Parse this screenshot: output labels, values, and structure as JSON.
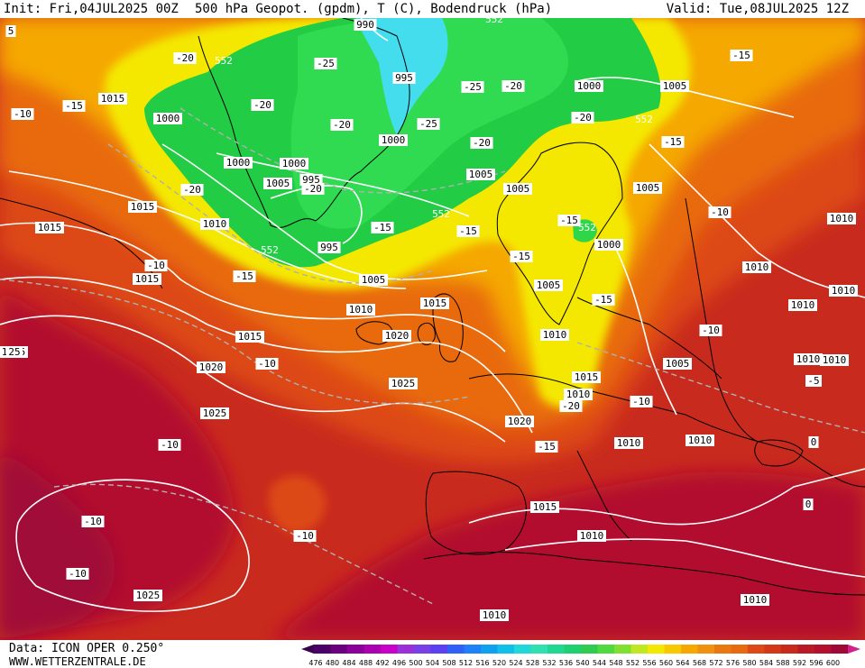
{
  "header": {
    "init": "Init: Fri,04JUL2025 00Z",
    "title": "500 hPa Geopot. (gpdm), T (C), Bodendruck (hPa)",
    "valid": "Valid: Tue,08JUL2025 12Z"
  },
  "footer": {
    "model": "Data: ICON OPER 0.250°",
    "site": "WWW.WETTERZENTRALE.DE"
  },
  "colors": {
    "green": "#22cc44",
    "light_green": "#33dd55",
    "cyan": "#44ddee",
    "yellow": "#f4e800",
    "orange": "#f5a800",
    "dark_orange": "#e86a10",
    "red_orange": "#dd4a18",
    "red": "#c92a1e",
    "dark_red": "#b2102e",
    "magenta_red": "#a00838"
  },
  "legend": {
    "values": [
      "476",
      "480",
      "484",
      "488",
      "492",
      "496",
      "500",
      "504",
      "508",
      "512",
      "516",
      "520",
      "524",
      "528",
      "532",
      "536",
      "540",
      "544",
      "548",
      "552",
      "556",
      "560",
      "564",
      "568",
      "572",
      "576",
      "580",
      "584",
      "588",
      "592",
      "596",
      "600"
    ],
    "colors": [
      "#4b0068",
      "#6a0080",
      "#8a0098",
      "#aa00b0",
      "#c800c8",
      "#9a30d8",
      "#7a40e8",
      "#5a40f0",
      "#3060f8",
      "#2080f8",
      "#10a0f0",
      "#10c0e8",
      "#20d8d8",
      "#30e0b0",
      "#20d890",
      "#20d070",
      "#30cc50",
      "#50d840",
      "#80e030",
      "#c0e820",
      "#f4e800",
      "#f8c800",
      "#f5a800",
      "#f09010",
      "#ea7810",
      "#e86a10",
      "#dd4a18",
      "#d23818",
      "#c92a1e",
      "#b81a26",
      "#b2102e",
      "#a00838"
    ]
  },
  "pressure_labels": [
    {
      "text": "990"
    },
    {
      "text": "995"
    },
    {
      "text": "995"
    },
    {
      "text": "995"
    },
    {
      "text": "1000"
    },
    {
      "text": "1000"
    },
    {
      "text": "1000"
    },
    {
      "text": "1000"
    },
    {
      "text": "1000"
    },
    {
      "text": "1000"
    },
    {
      "text": "1005"
    },
    {
      "text": "1005"
    },
    {
      "text": "1005"
    },
    {
      "text": "1005"
    },
    {
      "text": "1005"
    },
    {
      "text": "1005"
    },
    {
      "text": "1005"
    },
    {
      "text": "1005"
    },
    {
      "text": "1010"
    },
    {
      "text": "1010"
    },
    {
      "text": "1010"
    },
    {
      "text": "1010"
    },
    {
      "text": "1010"
    },
    {
      "text": "1010"
    },
    {
      "text": "1010"
    },
    {
      "text": "1010"
    },
    {
      "text": "1010"
    },
    {
      "text": "1010"
    },
    {
      "text": "1010"
    },
    {
      "text": "1010"
    },
    {
      "text": "1010"
    },
    {
      "text": "1010"
    },
    {
      "text": "1010"
    },
    {
      "text": "1015"
    },
    {
      "text": "1015"
    },
    {
      "text": "1015"
    },
    {
      "text": "1015"
    },
    {
      "text": "1015"
    },
    {
      "text": "1015"
    },
    {
      "text": "1015"
    },
    {
      "text": "1015"
    },
    {
      "text": "1020"
    },
    {
      "text": "1020"
    },
    {
      "text": "1020"
    },
    {
      "text": "1025"
    },
    {
      "text": "1025"
    },
    {
      "text": "1025"
    },
    {
      "text": "1025"
    }
  ],
  "temperature_labels": [
    {
      "text": "-25"
    },
    {
      "text": "-25"
    },
    {
      "text": "-25"
    },
    {
      "text": "-20"
    },
    {
      "text": "-20"
    },
    {
      "text": "-20"
    },
    {
      "text": "-20"
    },
    {
      "text": "-20"
    },
    {
      "text": "-20"
    },
    {
      "text": "-20"
    },
    {
      "text": "-20"
    },
    {
      "text": "-20"
    },
    {
      "text": "-15"
    },
    {
      "text": "-15"
    },
    {
      "text": "-15"
    },
    {
      "text": "-15"
    },
    {
      "text": "-15"
    },
    {
      "text": "-15"
    },
    {
      "text": "-15"
    },
    {
      "text": "-15"
    },
    {
      "text": "-15"
    },
    {
      "text": "-15"
    },
    {
      "text": "-10"
    },
    {
      "text": "-10"
    },
    {
      "text": "-10"
    },
    {
      "text": "-10"
    },
    {
      "text": "-10"
    },
    {
      "text": "-10"
    },
    {
      "text": "-10"
    },
    {
      "text": "-10"
    },
    {
      "text": "-10"
    },
    {
      "text": "-10"
    },
    {
      "text": "-5"
    },
    {
      "text": "0"
    },
    {
      "text": "0"
    }
  ],
  "geopotential_labels": [
    {
      "text": "552"
    },
    {
      "text": "552"
    },
    {
      "text": "552"
    },
    {
      "text": "552"
    },
    {
      "text": "552"
    },
    {
      "text": "552"
    }
  ],
  "edge_labels": [
    {
      "text": "5"
    },
    {
      "text": "25"
    }
  ]
}
